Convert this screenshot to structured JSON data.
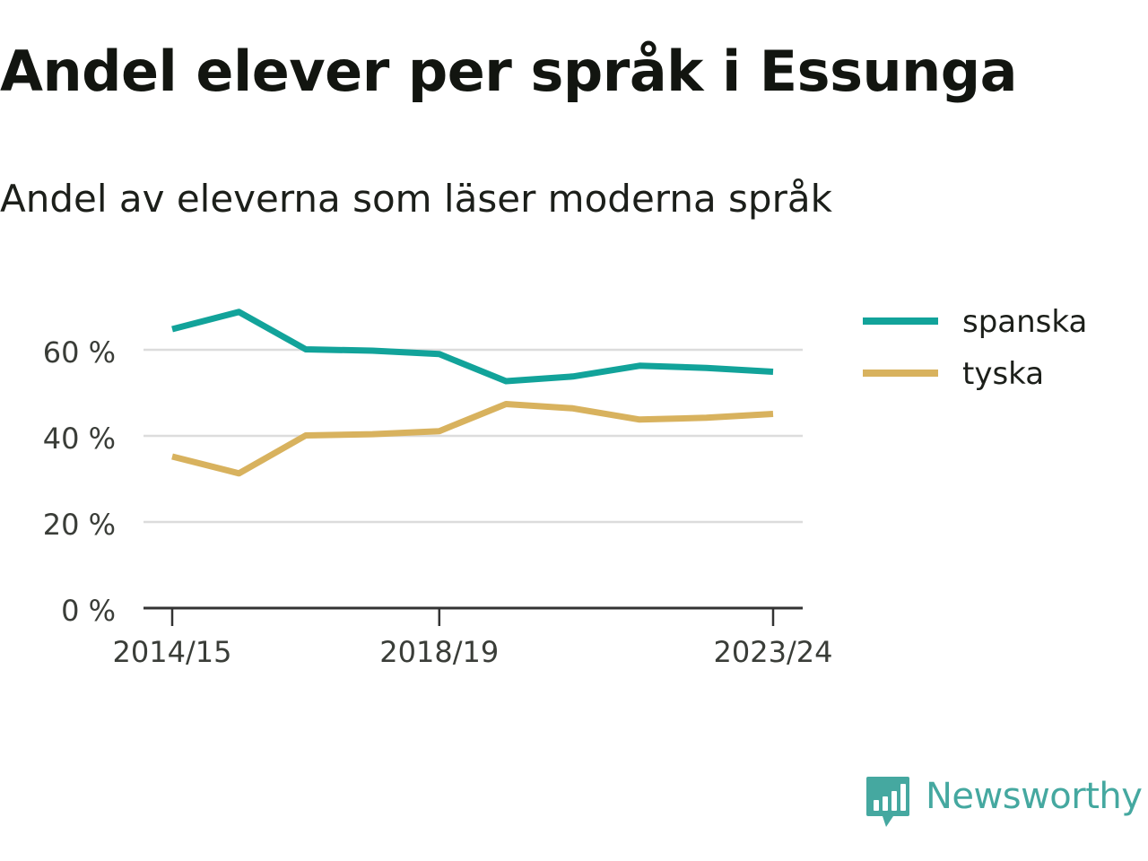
{
  "chart_data": {
    "type": "line",
    "title": "Andel elever per språk i Essunga",
    "subtitle": "Andel av eleverna som läser moderna språk",
    "x": [
      "2014/15",
      "2015/16",
      "2016/17",
      "2017/18",
      "2018/19",
      "2019/20",
      "2020/21",
      "2021/22",
      "2022/23",
      "2023/24"
    ],
    "x_tick_labels": [
      "2014/15",
      "2018/19",
      "2023/24"
    ],
    "y_ticks": [
      0,
      20,
      40,
      60
    ],
    "y_tick_labels": [
      "0 %",
      "20 %",
      "40 %",
      "60 %"
    ],
    "ylim": [
      0,
      75
    ],
    "grid": true,
    "legend_position": "right",
    "series": [
      {
        "name": "spanska",
        "color": "#12a39a",
        "values": [
          64.8,
          68.8,
          60.1,
          59.8,
          59.0,
          52.7,
          53.8,
          56.3,
          55.8,
          54.9
        ]
      },
      {
        "name": "tyska",
        "color": "#d8b25e",
        "values": [
          35.2,
          31.3,
          40.1,
          40.4,
          41.1,
          47.4,
          46.4,
          43.8,
          44.2,
          45.1
        ]
      }
    ]
  },
  "branding": {
    "logo_text": "Newsworthy",
    "logo_icon": "newsworthy-chart-bubble-icon",
    "logo_color": "#45a8a0"
  }
}
